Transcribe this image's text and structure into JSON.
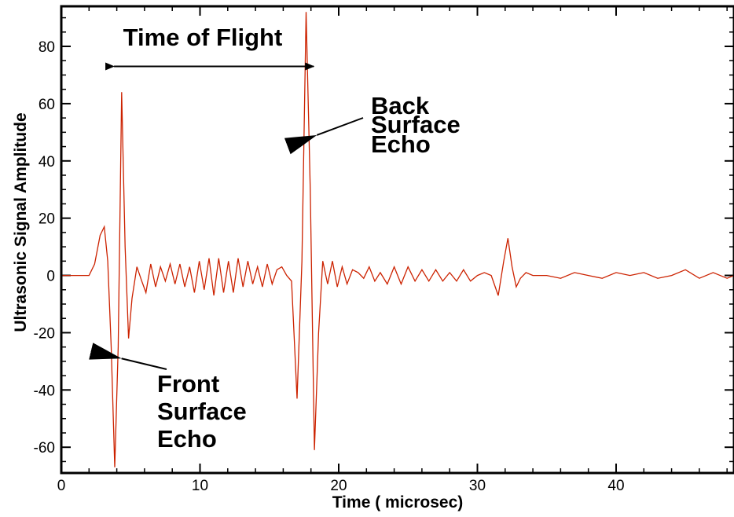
{
  "chart_data": {
    "type": "line",
    "title": "",
    "xlabel": "Time ( microsec)",
    "ylabel": "Ultrasonic Signal Amplitude",
    "xlim": [
      0,
      48.5
    ],
    "ylim": [
      -69,
      94
    ],
    "x_ticks": [
      0,
      10,
      20,
      30,
      40
    ],
    "x_tick_labels": [
      "0",
      "10",
      "20",
      "30",
      "40"
    ],
    "y_ticks": [
      -60,
      -40,
      -20,
      0,
      20,
      40,
      60,
      80
    ],
    "y_tick_labels": [
      "-60",
      "-40",
      "-20",
      "0",
      "20",
      "40",
      "60",
      "80"
    ],
    "x_minor_step": 2,
    "y_minor_step": 5,
    "grid": false,
    "legend": "none",
    "colors": {
      "signal": "#cc2200",
      "axes": "#000000"
    },
    "series": [
      {
        "x": [
          0,
          1,
          2,
          2.4,
          2.8,
          3.1,
          3.35,
          3.6,
          3.85,
          4.1,
          4.35,
          4.6,
          4.85,
          5.1,
          5.45,
          5.8,
          6.1,
          6.45,
          6.8,
          7.15,
          7.5,
          7.85,
          8.2,
          8.55,
          8.9,
          9.25,
          9.6,
          9.95,
          10.3,
          10.65,
          11.0,
          11.35,
          11.7,
          12.05,
          12.4,
          12.75,
          13.1,
          13.45,
          13.8,
          14.15,
          14.5,
          14.85,
          15.2,
          15.55,
          15.9,
          16.25,
          16.6,
          17.0,
          17.35,
          17.65,
          17.95,
          18.25,
          18.55,
          18.85,
          19.2,
          19.55,
          19.9,
          20.25,
          20.6,
          21.0,
          21.4,
          21.8,
          22.2,
          22.6,
          23.0,
          23.5,
          24.0,
          24.5,
          25.0,
          25.5,
          26.0,
          26.5,
          27.0,
          27.5,
          28.0,
          28.5,
          29.0,
          29.5,
          30.0,
          30.5,
          31.0,
          31.5,
          31.9,
          32.2,
          32.5,
          32.8,
          33.1,
          33.5,
          34.0,
          35.0,
          36.0,
          37.0,
          38.0,
          39.0,
          40.0,
          41.0,
          42.0,
          43.0,
          44.0,
          45.0,
          46.0,
          47.0,
          48.0,
          48.5
        ],
        "y": [
          0,
          0,
          0,
          4,
          14,
          17,
          5,
          -25,
          -67,
          -25,
          64,
          10,
          -22,
          -8,
          3,
          -2,
          -6,
          4,
          -4,
          3,
          -2,
          4,
          -3,
          4,
          -4,
          3,
          -6,
          5,
          -5,
          6,
          -7,
          6,
          -6,
          5,
          -6,
          6,
          -4,
          5,
          -3,
          3,
          -4,
          4,
          -3,
          2,
          3,
          0,
          -2,
          -43,
          5,
          92,
          30,
          -61,
          -20,
          5,
          -3,
          5,
          -4,
          3,
          -3,
          2,
          1,
          -1,
          3,
          -2,
          1,
          -3,
          3,
          -3,
          3,
          -2,
          2,
          -2,
          2,
          -2,
          1,
          -2,
          2,
          -2,
          0,
          1,
          0,
          -7,
          5,
          13,
          3,
          -4,
          -1,
          1,
          0,
          0,
          -1,
          1,
          0,
          -1,
          1,
          0,
          1,
          -1,
          0,
          2,
          -1,
          1,
          -1,
          0
        ]
      }
    ],
    "annotations": [
      {
        "text": "Time of Flight",
        "arrow": "double",
        "from_x": 3.8,
        "to_x": 18.2,
        "at_y": 73
      },
      {
        "lines": [
          "Back",
          "Surface",
          "Echo"
        ],
        "arrow_to": [
          18.2,
          49
        ]
      },
      {
        "lines": [
          "Front",
          "Surface",
          "Echo"
        ],
        "arrow_to": [
          4.0,
          -29
        ]
      }
    ]
  }
}
